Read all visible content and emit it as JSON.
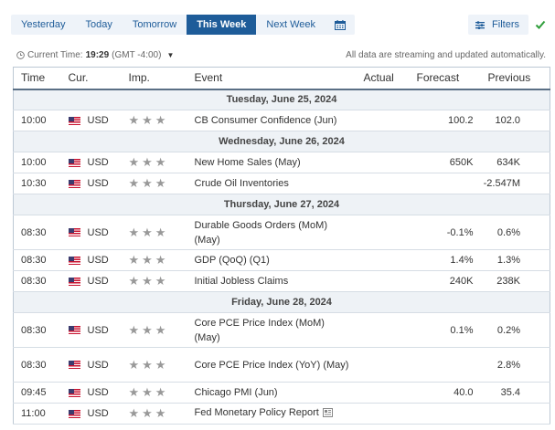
{
  "tabs": [
    {
      "label": "Yesterday",
      "active": false
    },
    {
      "label": "Today",
      "active": false
    },
    {
      "label": "Tomorrow",
      "active": false
    },
    {
      "label": "This Week",
      "active": true
    },
    {
      "label": "Next Week",
      "active": false
    }
  ],
  "calendar_icon": "calendar-icon",
  "filters": {
    "label": "Filters",
    "icon": "filters-icon",
    "status_icon": "check-icon"
  },
  "info": {
    "current_time_label": "Current Time:",
    "time": "19:29",
    "timezone": "(GMT -4:00)",
    "streaming_note": "All data are streaming and updated automatically."
  },
  "columns": {
    "time": "Time",
    "cur": "Cur.",
    "imp": "Imp.",
    "event": "Event",
    "actual": "Actual",
    "forecast": "Forecast",
    "previous": "Previous"
  },
  "days": [
    {
      "date": "Tuesday, June 25, 2024",
      "events": [
        {
          "time": "10:00",
          "cur": "USD",
          "event": "CB Consumer Confidence (Jun)",
          "actual": "",
          "forecast": "100.2",
          "previous": "102.0",
          "rows": 1
        }
      ]
    },
    {
      "date": "Wednesday, June 26, 2024",
      "events": [
        {
          "time": "10:00",
          "cur": "USD",
          "event": "New Home Sales (May)",
          "actual": "",
          "forecast": "650K",
          "previous": "634K",
          "rows": 1
        },
        {
          "time": "10:30",
          "cur": "USD",
          "event": "Crude Oil Inventories",
          "actual": "",
          "forecast": "",
          "previous": "-2.547M",
          "rows": 1
        }
      ]
    },
    {
      "date": "Thursday, June 27, 2024",
      "events": [
        {
          "time": "08:30",
          "cur": "USD",
          "event": "Durable Goods Orders (MoM) (May)",
          "actual": "",
          "forecast": "-0.1%",
          "previous": "0.6%",
          "rows": 2
        },
        {
          "time": "08:30",
          "cur": "USD",
          "event": "GDP (QoQ) (Q1)",
          "actual": "",
          "forecast": "1.4%",
          "previous": "1.3%",
          "rows": 1
        },
        {
          "time": "08:30",
          "cur": "USD",
          "event": "Initial Jobless Claims",
          "actual": "",
          "forecast": "240K",
          "previous": "238K",
          "rows": 1
        }
      ]
    },
    {
      "date": "Friday, June 28, 2024",
      "events": [
        {
          "time": "08:30",
          "cur": "USD",
          "event": "Core PCE Price Index (MoM) (May)",
          "actual": "",
          "forecast": "0.1%",
          "previous": "0.2%",
          "rows": 2
        },
        {
          "time": "08:30",
          "cur": "USD",
          "event": "Core PCE Price Index (YoY) (May)",
          "actual": "",
          "forecast": "",
          "previous": "2.8%",
          "rows": 2
        },
        {
          "time": "09:45",
          "cur": "USD",
          "event": "Chicago PMI (Jun)",
          "actual": "",
          "forecast": "40.0",
          "previous": "35.4",
          "rows": 1
        },
        {
          "time": "11:00",
          "cur": "USD",
          "event": "Fed Monetary Policy Report",
          "actual": "",
          "forecast": "",
          "previous": "",
          "rows": 1,
          "doc_icon": true
        }
      ]
    }
  ],
  "importance_stars": 3,
  "colors": {
    "accent": "#1e5c99",
    "tab_bg": "#eef3f9",
    "check": "#2e9e3a",
    "star": "#999999"
  }
}
